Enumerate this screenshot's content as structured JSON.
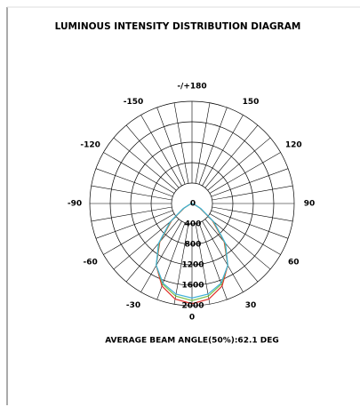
{
  "chart_data": {
    "type": "polar",
    "title": "LUMINOUS INTENSITY DISTRIBUTION DIAGRAM",
    "footer": "AVERAGE BEAM ANGLE(50%):62.1 DEG",
    "x": [
      -90,
      -80,
      -70,
      -60,
      -50,
      -40,
      -30,
      -20,
      -10,
      0,
      10,
      20,
      30,
      40,
      50,
      60,
      70,
      80,
      90
    ],
    "series": [
      {
        "color": "#e0302a",
        "values": [
          0,
          5,
          40,
          180,
          520,
          980,
          1400,
          1720,
          1900,
          1960,
          1900,
          1720,
          1400,
          980,
          520,
          180,
          40,
          5,
          0
        ]
      },
      {
        "color": "#7cc04a",
        "values": [
          0,
          5,
          40,
          190,
          540,
          1000,
          1400,
          1680,
          1840,
          1900,
          1840,
          1680,
          1400,
          1000,
          540,
          190,
          40,
          5,
          0
        ]
      },
      {
        "color": "#3fb0d8",
        "values": [
          0,
          5,
          45,
          200,
          560,
          1020,
          1400,
          1660,
          1800,
          1850,
          1800,
          1660,
          1400,
          1020,
          560,
          200,
          45,
          5,
          0
        ]
      }
    ],
    "rlim": [
      0,
      2000
    ],
    "rticks": [
      0,
      400,
      800,
      1200,
      1600,
      2000
    ],
    "angle_ticks": [
      {
        "value": 180,
        "label": "-/+180"
      },
      150,
      120,
      90,
      60,
      30,
      0,
      -30,
      -60,
      -90,
      -120,
      -150
    ]
  }
}
